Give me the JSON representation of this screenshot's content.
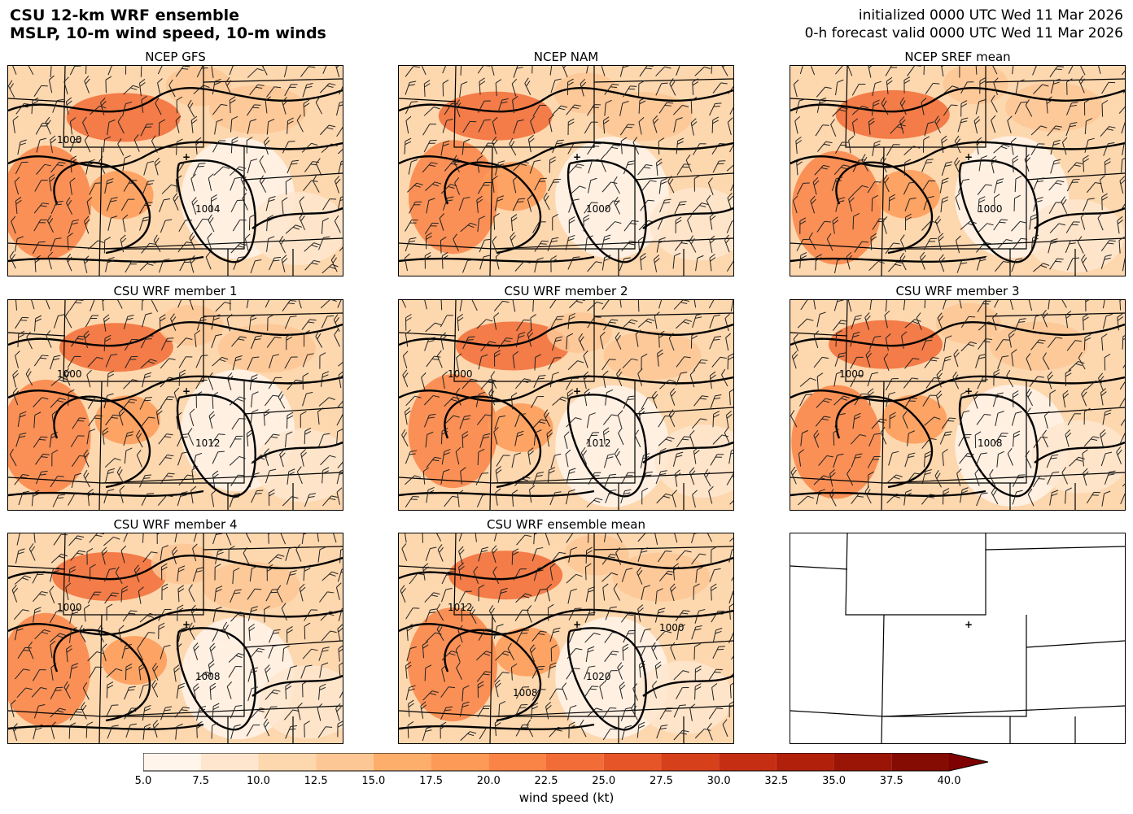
{
  "header": {
    "title_line1": "CSU 12-km WRF ensemble",
    "title_line2": "MSLP, 10-m wind speed, 10-m winds",
    "init_line": "initialized 0000 UTC Wed 11 Mar 2026",
    "valid_line": "0-h forecast valid 0000 UTC Wed 11 Mar 2026"
  },
  "panels": [
    {
      "title": "NCEP GFS",
      "contour_labels": [
        "1004",
        "1000"
      ]
    },
    {
      "title": "NCEP NAM",
      "contour_labels": [
        "1000"
      ]
    },
    {
      "title": "NCEP SREF mean",
      "contour_labels": [
        "1000"
      ]
    },
    {
      "title": "CSU WRF member 1",
      "contour_labels": [
        "1012",
        "1000"
      ]
    },
    {
      "title": "CSU WRF member 2",
      "contour_labels": [
        "1012",
        "1000"
      ]
    },
    {
      "title": "CSU WRF member 3",
      "contour_labels": [
        "1008",
        "1000"
      ]
    },
    {
      "title": "CSU WRF member 4",
      "contour_labels": [
        "1008",
        "1000"
      ]
    },
    {
      "title": "CSU WRF ensemble mean",
      "contour_labels": [
        "1020",
        "1012",
        "1008",
        "1000"
      ]
    },
    {
      "title": "",
      "contour_labels": []
    }
  ],
  "colorbar": {
    "label": "wind speed (kt)",
    "ticks": [
      "5.0",
      "7.5",
      "10.0",
      "12.5",
      "15.0",
      "17.5",
      "20.0",
      "22.5",
      "25.0",
      "27.5",
      "30.0",
      "32.5",
      "35.0",
      "37.5",
      "40.0"
    ],
    "colors": [
      "#fff5eb",
      "#fee6ce",
      "#fdd7ae",
      "#fdc795",
      "#fdae6b",
      "#fd9a57",
      "#f98446",
      "#f16c36",
      "#e65527",
      "#d6401b",
      "#c52e12",
      "#b1200b",
      "#9b1506",
      "#840c03"
    ]
  }
}
